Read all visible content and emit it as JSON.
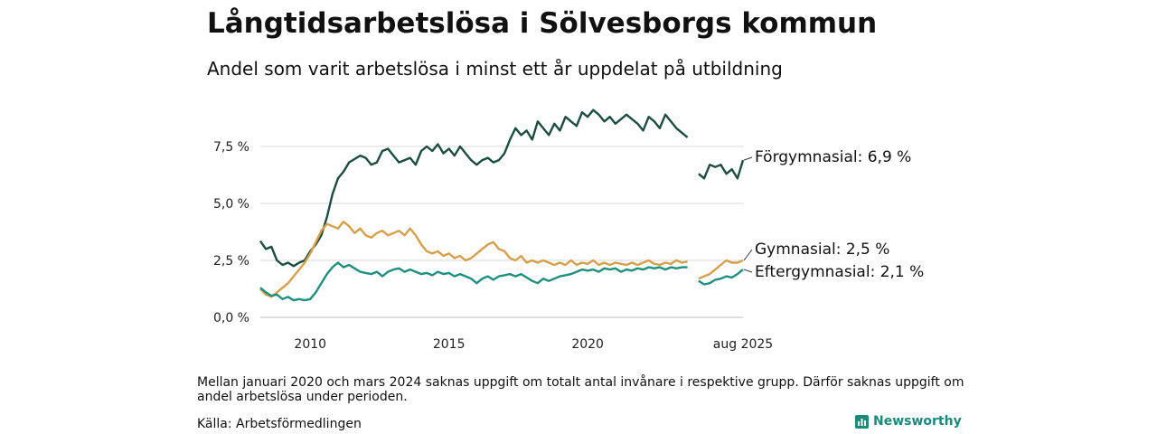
{
  "title": "Långtidsarbetslösa i Sölvesborgs kommun",
  "subtitle": "Andel som varit arbetslösa i minst ett år uppdelat på utbildning",
  "footnote": "Mellan januari 2020 och mars 2024 saknas uppgift om totalt antal invånare i respektive grupp. Därför saknas uppgift om andel arbetslösa under perioden.",
  "source": "Källa: Arbetsförmedlingen",
  "brand": "Newsworthy",
  "chart_data": {
    "type": "line",
    "y_ticks": [
      0,
      2.5,
      5,
      7.5
    ],
    "y_tick_labels": [
      "0,0 %",
      "2,5 %",
      "5,0 %",
      "7,5 %"
    ],
    "ylim": [
      0,
      10
    ],
    "x_ticks": [
      {
        "x": 2010,
        "label": "2010"
      },
      {
        "x": 2015,
        "label": "2015"
      },
      {
        "x": 2020,
        "label": "2020"
      },
      {
        "x": 2025.6,
        "label": "aug 2025"
      }
    ],
    "grid": true,
    "series": [
      {
        "name": "Förgymnasial",
        "end_label": "Förgymnasial: 6,9 %",
        "color": "#1d4d40",
        "segments": [
          [
            [
              2008.2,
              3.35
            ],
            [
              2008.4,
              3.0
            ],
            [
              2008.6,
              3.1
            ],
            [
              2008.8,
              2.5
            ],
            [
              2009.0,
              2.3
            ],
            [
              2009.2,
              2.4
            ],
            [
              2009.4,
              2.25
            ],
            [
              2009.6,
              2.4
            ],
            [
              2009.8,
              2.5
            ],
            [
              2010.0,
              2.9
            ],
            [
              2010.2,
              3.2
            ],
            [
              2010.4,
              3.6
            ],
            [
              2010.6,
              4.4
            ],
            [
              2010.8,
              5.4
            ],
            [
              2011.0,
              6.1
            ],
            [
              2011.2,
              6.4
            ],
            [
              2011.4,
              6.8
            ],
            [
              2011.6,
              6.95
            ],
            [
              2011.8,
              7.1
            ],
            [
              2012.0,
              7.0
            ],
            [
              2012.2,
              6.7
            ],
            [
              2012.4,
              6.8
            ],
            [
              2012.6,
              7.3
            ],
            [
              2012.8,
              7.4
            ],
            [
              2013.0,
              7.1
            ],
            [
              2013.2,
              6.8
            ],
            [
              2013.4,
              6.9
            ],
            [
              2013.6,
              7.0
            ],
            [
              2013.8,
              6.7
            ],
            [
              2014.0,
              7.3
            ],
            [
              2014.2,
              7.5
            ],
            [
              2014.4,
              7.3
            ],
            [
              2014.6,
              7.6
            ],
            [
              2014.8,
              7.2
            ],
            [
              2015.0,
              7.4
            ],
            [
              2015.2,
              7.1
            ],
            [
              2015.4,
              7.5
            ],
            [
              2015.6,
              7.2
            ],
            [
              2015.8,
              6.9
            ],
            [
              2016.0,
              6.7
            ],
            [
              2016.2,
              6.9
            ],
            [
              2016.4,
              7.0
            ],
            [
              2016.6,
              6.8
            ],
            [
              2016.8,
              6.9
            ],
            [
              2017.0,
              7.2
            ],
            [
              2017.2,
              7.8
            ],
            [
              2017.4,
              8.3
            ],
            [
              2017.6,
              8.0
            ],
            [
              2017.8,
              8.2
            ],
            [
              2018.0,
              7.8
            ],
            [
              2018.2,
              8.6
            ],
            [
              2018.4,
              8.3
            ],
            [
              2018.6,
              8.0
            ],
            [
              2018.8,
              8.5
            ],
            [
              2019.0,
              8.2
            ],
            [
              2019.2,
              8.8
            ],
            [
              2019.4,
              8.6
            ],
            [
              2019.6,
              8.4
            ],
            [
              2019.8,
              9.0
            ],
            [
              2020.0,
              8.8
            ],
            [
              2020.2,
              9.1
            ],
            [
              2020.4,
              8.9
            ],
            [
              2020.6,
              8.6
            ],
            [
              2020.8,
              8.8
            ],
            [
              2021.0,
              8.5
            ],
            [
              2021.2,
              8.7
            ],
            [
              2021.4,
              8.9
            ],
            [
              2021.6,
              8.7
            ],
            [
              2021.8,
              8.5
            ],
            [
              2022.0,
              8.2
            ],
            [
              2022.2,
              8.8
            ],
            [
              2022.4,
              8.6
            ],
            [
              2022.6,
              8.3
            ],
            [
              2022.8,
              8.9
            ],
            [
              2023.0,
              8.6
            ],
            [
              2023.2,
              8.3
            ],
            [
              2023.4,
              8.1
            ],
            [
              2023.6,
              7.9
            ]
          ],
          [
            [
              2024.0,
              6.3
            ],
            [
              2024.2,
              6.1
            ],
            [
              2024.4,
              6.7
            ],
            [
              2024.6,
              6.6
            ],
            [
              2024.8,
              6.7
            ],
            [
              2025.0,
              6.3
            ],
            [
              2025.2,
              6.5
            ],
            [
              2025.4,
              6.1
            ],
            [
              2025.6,
              6.9
            ]
          ]
        ]
      },
      {
        "name": "Gymnasial",
        "end_label": "Gymnasial: 2,5 %",
        "color": "#d4a04a",
        "segments": [
          [
            [
              2008.2,
              1.25
            ],
            [
              2008.4,
              1.0
            ],
            [
              2008.6,
              0.9
            ],
            [
              2008.8,
              1.1
            ],
            [
              2009.0,
              1.3
            ],
            [
              2009.2,
              1.5
            ],
            [
              2009.4,
              1.8
            ],
            [
              2009.6,
              2.1
            ],
            [
              2009.8,
              2.4
            ],
            [
              2010.0,
              2.8
            ],
            [
              2010.2,
              3.3
            ],
            [
              2010.4,
              3.8
            ],
            [
              2010.6,
              4.1
            ],
            [
              2010.8,
              4.0
            ],
            [
              2011.0,
              3.9
            ],
            [
              2011.2,
              4.2
            ],
            [
              2011.4,
              4.0
            ],
            [
              2011.6,
              3.7
            ],
            [
              2011.8,
              3.9
            ],
            [
              2012.0,
              3.6
            ],
            [
              2012.2,
              3.5
            ],
            [
              2012.4,
              3.7
            ],
            [
              2012.6,
              3.8
            ],
            [
              2012.8,
              3.6
            ],
            [
              2013.0,
              3.7
            ],
            [
              2013.2,
              3.8
            ],
            [
              2013.4,
              3.6
            ],
            [
              2013.6,
              3.9
            ],
            [
              2013.8,
              3.6
            ],
            [
              2014.0,
              3.2
            ],
            [
              2014.2,
              2.9
            ],
            [
              2014.4,
              2.8
            ],
            [
              2014.6,
              2.9
            ],
            [
              2014.8,
              2.7
            ],
            [
              2015.0,
              2.8
            ],
            [
              2015.2,
              2.6
            ],
            [
              2015.4,
              2.7
            ],
            [
              2015.6,
              2.5
            ],
            [
              2015.8,
              2.6
            ],
            [
              2016.0,
              2.8
            ],
            [
              2016.2,
              3.0
            ],
            [
              2016.4,
              3.2
            ],
            [
              2016.6,
              3.3
            ],
            [
              2016.8,
              3.0
            ],
            [
              2017.0,
              2.9
            ],
            [
              2017.2,
              2.6
            ],
            [
              2017.4,
              2.5
            ],
            [
              2017.6,
              2.7
            ],
            [
              2017.8,
              2.4
            ],
            [
              2018.0,
              2.5
            ],
            [
              2018.2,
              2.4
            ],
            [
              2018.4,
              2.5
            ],
            [
              2018.6,
              2.4
            ],
            [
              2018.8,
              2.3
            ],
            [
              2019.0,
              2.4
            ],
            [
              2019.2,
              2.3
            ],
            [
              2019.4,
              2.5
            ],
            [
              2019.6,
              2.3
            ],
            [
              2019.8,
              2.4
            ],
            [
              2020.0,
              2.35
            ],
            [
              2020.2,
              2.5
            ],
            [
              2020.4,
              2.3
            ],
            [
              2020.6,
              2.4
            ],
            [
              2020.8,
              2.3
            ],
            [
              2021.0,
              2.4
            ],
            [
              2021.2,
              2.35
            ],
            [
              2021.4,
              2.3
            ],
            [
              2021.6,
              2.4
            ],
            [
              2021.8,
              2.3
            ],
            [
              2022.0,
              2.4
            ],
            [
              2022.2,
              2.5
            ],
            [
              2022.4,
              2.35
            ],
            [
              2022.6,
              2.3
            ],
            [
              2022.8,
              2.4
            ],
            [
              2023.0,
              2.35
            ],
            [
              2023.2,
              2.5
            ],
            [
              2023.4,
              2.4
            ],
            [
              2023.6,
              2.45
            ]
          ],
          [
            [
              2024.0,
              1.7
            ],
            [
              2024.2,
              1.8
            ],
            [
              2024.4,
              1.9
            ],
            [
              2024.6,
              2.1
            ],
            [
              2024.8,
              2.3
            ],
            [
              2025.0,
              2.5
            ],
            [
              2025.2,
              2.4
            ],
            [
              2025.4,
              2.4
            ],
            [
              2025.6,
              2.5
            ]
          ]
        ]
      },
      {
        "name": "Eftergymnasial",
        "end_label": "Eftergymnasial: 2,1 %",
        "color": "#1f8f7e",
        "segments": [
          [
            [
              2008.2,
              1.3
            ],
            [
              2008.4,
              1.1
            ],
            [
              2008.6,
              0.95
            ],
            [
              2008.8,
              1.0
            ],
            [
              2009.0,
              0.8
            ],
            [
              2009.2,
              0.9
            ],
            [
              2009.4,
              0.75
            ],
            [
              2009.6,
              0.8
            ],
            [
              2009.8,
              0.75
            ],
            [
              2010.0,
              0.8
            ],
            [
              2010.2,
              1.1
            ],
            [
              2010.4,
              1.5
            ],
            [
              2010.6,
              1.9
            ],
            [
              2010.8,
              2.2
            ],
            [
              2011.0,
              2.4
            ],
            [
              2011.2,
              2.2
            ],
            [
              2011.4,
              2.3
            ],
            [
              2011.6,
              2.15
            ],
            [
              2011.8,
              2.0
            ],
            [
              2012.0,
              1.95
            ],
            [
              2012.2,
              1.9
            ],
            [
              2012.4,
              2.0
            ],
            [
              2012.6,
              1.8
            ],
            [
              2012.8,
              2.0
            ],
            [
              2013.0,
              2.1
            ],
            [
              2013.2,
              2.15
            ],
            [
              2013.4,
              2.0
            ],
            [
              2013.6,
              2.1
            ],
            [
              2013.8,
              2.0
            ],
            [
              2014.0,
              1.9
            ],
            [
              2014.2,
              1.95
            ],
            [
              2014.4,
              1.85
            ],
            [
              2014.6,
              2.0
            ],
            [
              2014.8,
              1.9
            ],
            [
              2015.0,
              1.95
            ],
            [
              2015.2,
              1.8
            ],
            [
              2015.4,
              1.9
            ],
            [
              2015.6,
              1.8
            ],
            [
              2015.8,
              1.7
            ],
            [
              2016.0,
              1.5
            ],
            [
              2016.2,
              1.7
            ],
            [
              2016.4,
              1.8
            ],
            [
              2016.6,
              1.65
            ],
            [
              2016.8,
              1.8
            ],
            [
              2017.0,
              1.85
            ],
            [
              2017.2,
              1.9
            ],
            [
              2017.4,
              1.8
            ],
            [
              2017.6,
              1.9
            ],
            [
              2017.8,
              1.75
            ],
            [
              2018.0,
              1.6
            ],
            [
              2018.2,
              1.5
            ],
            [
              2018.4,
              1.7
            ],
            [
              2018.6,
              1.6
            ],
            [
              2018.8,
              1.7
            ],
            [
              2019.0,
              1.8
            ],
            [
              2019.2,
              1.85
            ],
            [
              2019.4,
              1.9
            ],
            [
              2019.6,
              2.0
            ],
            [
              2019.8,
              2.1
            ],
            [
              2020.0,
              2.05
            ],
            [
              2020.2,
              2.1
            ],
            [
              2020.4,
              2.0
            ],
            [
              2020.6,
              2.15
            ],
            [
              2020.8,
              2.1
            ],
            [
              2021.0,
              2.15
            ],
            [
              2021.2,
              2.0
            ],
            [
              2021.4,
              2.1
            ],
            [
              2021.6,
              2.05
            ],
            [
              2021.8,
              2.15
            ],
            [
              2022.0,
              2.1
            ],
            [
              2022.2,
              2.2
            ],
            [
              2022.4,
              2.15
            ],
            [
              2022.6,
              2.2
            ],
            [
              2022.8,
              2.1
            ],
            [
              2023.0,
              2.2
            ],
            [
              2023.2,
              2.15
            ],
            [
              2023.4,
              2.2
            ],
            [
              2023.6,
              2.2
            ]
          ],
          [
            [
              2024.0,
              1.6
            ],
            [
              2024.2,
              1.45
            ],
            [
              2024.4,
              1.5
            ],
            [
              2024.6,
              1.65
            ],
            [
              2024.8,
              1.7
            ],
            [
              2025.0,
              1.8
            ],
            [
              2025.2,
              1.75
            ],
            [
              2025.4,
              1.9
            ],
            [
              2025.6,
              2.1
            ]
          ]
        ]
      }
    ]
  }
}
